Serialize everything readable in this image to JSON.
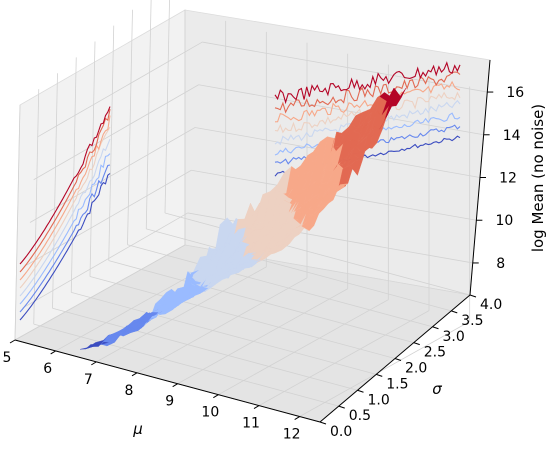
{
  "chart_data": {
    "type": "surface3d",
    "zlabel": "log Mean (no noise)",
    "xlabel": "μ",
    "ylabel": "σ",
    "xlim": [
      5,
      12.5
    ],
    "ylim": [
      0,
      4
    ],
    "zlim": [
      6.5,
      17.5
    ],
    "xticks": [
      "5",
      "6",
      "7",
      "8",
      "9",
      "10",
      "11",
      "12"
    ],
    "yticks": [
      "0.0",
      "0.5",
      "1.0",
      "1.5",
      "2.0",
      "2.5",
      "3.0",
      "3.5",
      "4.0"
    ],
    "zticks": [
      "8",
      "10",
      "12",
      "14",
      "16"
    ],
    "colormap": "coolwarm",
    "colors": [
      "#3b4cc0",
      "#6788ee",
      "#9abbff",
      "#c9d7f0",
      "#edd1c2",
      "#f7a889",
      "#e26952",
      "#b40426"
    ],
    "surface_model": "z = mu + sigma^2/2 + noise",
    "projections": [
      {
        "plane": "x=5",
        "series": [
          {
            "sigma": 0.5,
            "z_range": [
              6.5,
              10.5
            ]
          },
          {
            "sigma": 1.0,
            "z_range": [
              7.0,
              11.0
            ]
          },
          {
            "sigma": 1.5,
            "z_range": [
              7.5,
              11.8
            ]
          },
          {
            "sigma": 2.0,
            "z_range": [
              8.2,
              12.8
            ]
          },
          {
            "sigma": 2.5,
            "z_range": [
              9.0,
              13.8
            ]
          },
          {
            "sigma": 3.0,
            "z_range": [
              10.0,
              14.8
            ]
          },
          {
            "sigma": 3.5,
            "z_range": [
              11.0,
              15.8
            ]
          },
          {
            "sigma": 4.0,
            "z_range": [
              12.0,
              16.8
            ]
          }
        ]
      },
      {
        "plane": "y=4",
        "series": [
          {
            "mu": 12.5,
            "z_range": [
              9.5,
              12.5
            ]
          },
          {
            "mu": 12.5,
            "z_range": [
              10.0,
              13.0
            ]
          },
          {
            "mu": 12.5,
            "z_range": [
              10.5,
              13.5
            ]
          },
          {
            "mu": 12.5,
            "z_range": [
              11.0,
              14.0
            ]
          },
          {
            "mu": 12.5,
            "z_range": [
              12.0,
              14.8
            ]
          },
          {
            "mu": 12.5,
            "z_range": [
              13.0,
              15.5
            ]
          },
          {
            "mu": 12.5,
            "z_range": [
              14.0,
              16.2
            ]
          },
          {
            "mu": 12.5,
            "z_range": [
              15.0,
              17.0
            ]
          }
        ]
      }
    ]
  }
}
